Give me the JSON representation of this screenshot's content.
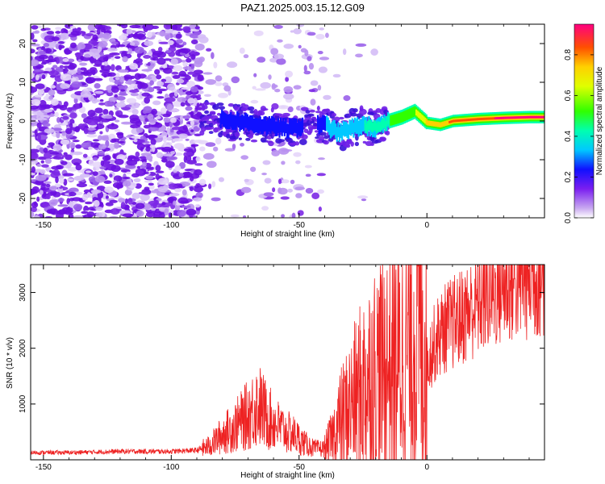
{
  "title": "PAZ1.2025.003.15.12.G09",
  "chart_data": [
    {
      "type": "heatmap",
      "xlabel": "Height of straight line (km)",
      "ylabel": "Frequency (Hz)",
      "xlim": [
        -155,
        46
      ],
      "ylim": [
        -25,
        25
      ],
      "xticks": [
        -150,
        -100,
        -50,
        0
      ],
      "yticks": [
        -20,
        -10,
        0,
        10,
        20
      ],
      "colorbar": {
        "label": "Normalized spectral amplitude",
        "range": [
          0,
          0.95
        ],
        "ticks": [
          0.0,
          0.2,
          0.4,
          0.6,
          0.8
        ]
      },
      "ridge_frequency": {
        "x": [
          -85,
          -75,
          -65,
          -55,
          -45,
          -40,
          -35,
          -30,
          -25,
          -20,
          -15,
          -10,
          -5,
          0,
          5,
          10,
          20,
          30,
          40,
          46
        ],
        "y": [
          0.5,
          0,
          -1,
          -2,
          -1,
          -1,
          -3,
          -2,
          -1,
          -2,
          0,
          1,
          2.5,
          -0.5,
          -1,
          0,
          0.5,
          0.8,
          1,
          1
        ]
      },
      "ridge_amplitude": {
        "x": [
          -85,
          -75,
          -65,
          -55,
          -45,
          -40,
          -35,
          -30,
          -25,
          -20,
          -15,
          -10,
          -5,
          0,
          5,
          10,
          20,
          30,
          40,
          46
        ],
        "y": [
          0.2,
          0.25,
          0.25,
          0.25,
          0.2,
          0.25,
          0.3,
          0.3,
          0.35,
          0.4,
          0.45,
          0.5,
          0.55,
          0.7,
          0.75,
          0.8,
          0.85,
          0.9,
          0.95,
          0.95
        ]
      }
    },
    {
      "type": "line",
      "xlabel": "Height of straight line (km)",
      "ylabel": "SNR (10 * v/v)",
      "xlim": [
        -155,
        46
      ],
      "ylim": [
        0,
        3500
      ],
      "xticks": [
        -150,
        -100,
        -50,
        0
      ],
      "yticks": [
        1000,
        2000,
        3000
      ],
      "series": [
        {
          "color": "#ee2222",
          "x": [
            -155,
            -140,
            -120,
            -100,
            -90,
            -85,
            -80,
            -75,
            -70,
            -66,
            -62,
            -58,
            -55,
            -52,
            -48,
            -44,
            -40,
            -37,
            -34,
            -31,
            -28,
            -25,
            -22,
            -19,
            -16,
            -13,
            -10,
            -7,
            -4,
            -2,
            0,
            2,
            5,
            8,
            12,
            16,
            20,
            24,
            28,
            32,
            36,
            40,
            46
          ],
          "y": [
            130,
            130,
            150,
            150,
            170,
            250,
            450,
            600,
            800,
            1000,
            750,
            600,
            500,
            450,
            300,
            200,
            200,
            400,
            700,
            900,
            1100,
            1300,
            1500,
            1600,
            1700,
            1750,
            1800,
            2000,
            2400,
            2300,
            1750,
            2000,
            2250,
            2400,
            2500,
            2650,
            2800,
            2950,
            3050,
            3150,
            3200,
            3250,
            3300
          ]
        }
      ]
    }
  ]
}
